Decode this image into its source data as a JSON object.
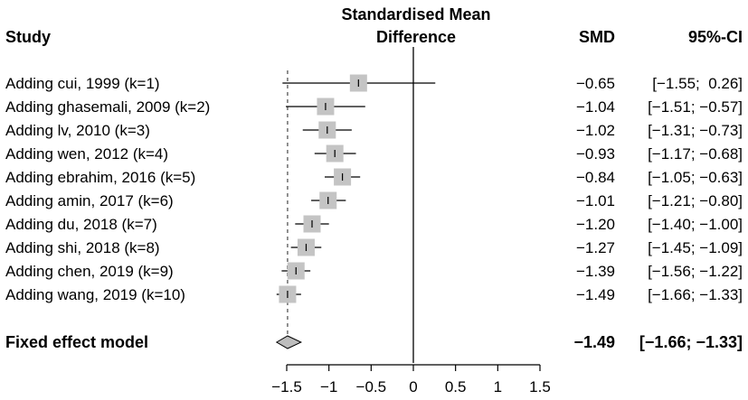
{
  "chart_data": {
    "type": "forest",
    "header": {
      "study": "Study",
      "effect_line1": "Standardised Mean",
      "effect_line2": "Difference",
      "smd": "SMD",
      "ci": "95%-CI"
    },
    "studies": [
      {
        "label": "Adding cui, 1999 (k=1)",
        "smd": -0.65,
        "lower": -1.55,
        "upper": 0.26,
        "smd_text": "−0.65",
        "ci_text": "[−1.55;  0.26]"
      },
      {
        "label": "Adding ghasemali, 2009 (k=2)",
        "smd": -1.04,
        "lower": -1.51,
        "upper": -0.57,
        "smd_text": "−1.04",
        "ci_text": "[−1.51; −0.57]"
      },
      {
        "label": "Adding lv, 2010 (k=3)",
        "smd": -1.02,
        "lower": -1.31,
        "upper": -0.73,
        "smd_text": "−1.02",
        "ci_text": "[−1.31; −0.73]"
      },
      {
        "label": "Adding wen, 2012 (k=4)",
        "smd": -0.93,
        "lower": -1.17,
        "upper": -0.68,
        "smd_text": "−0.93",
        "ci_text": "[−1.17; −0.68]"
      },
      {
        "label": "Adding ebrahim, 2016 (k=5)",
        "smd": -0.84,
        "lower": -1.05,
        "upper": -0.63,
        "smd_text": "−0.84",
        "ci_text": "[−1.05; −0.63]"
      },
      {
        "label": "Adding amin, 2017 (k=6)",
        "smd": -1.01,
        "lower": -1.21,
        "upper": -0.8,
        "smd_text": "−1.01",
        "ci_text": "[−1.21; −0.80]"
      },
      {
        "label": "Adding du, 2018 (k=7)",
        "smd": -1.2,
        "lower": -1.4,
        "upper": -1.0,
        "smd_text": "−1.20",
        "ci_text": "[−1.40; −1.00]"
      },
      {
        "label": "Adding shi, 2018 (k=8)",
        "smd": -1.27,
        "lower": -1.45,
        "upper": -1.09,
        "smd_text": "−1.27",
        "ci_text": "[−1.45; −1.09]"
      },
      {
        "label": "Adding chen, 2019 (k=9)",
        "smd": -1.39,
        "lower": -1.56,
        "upper": -1.22,
        "smd_text": "−1.39",
        "ci_text": "[−1.56; −1.22]"
      },
      {
        "label": "Adding wang, 2019 (k=10)",
        "smd": -1.49,
        "lower": -1.66,
        "upper": -1.33,
        "smd_text": "−1.49",
        "ci_text": "[−1.66; −1.33]"
      }
    ],
    "pooled": {
      "label": "Fixed effect model",
      "smd": -1.49,
      "lower": -1.66,
      "upper": -1.33,
      "smd_text": "−1.49",
      "ci_text": "[−1.66; −1.33]"
    },
    "xlim": [
      -1.5,
      1.5
    ],
    "ticks": [
      -1.5,
      -1,
      -0.5,
      0,
      0.5,
      1,
      1.5
    ],
    "tick_labels": [
      "−1.5",
      "−1",
      "−0.5",
      "0",
      "0.5",
      "1",
      "1.5"
    ],
    "null_line": 0,
    "colors": {
      "square": "#c4c4c4",
      "line": "#000000",
      "diamond": "#bdbdbd",
      "reference": "#555555"
    }
  }
}
